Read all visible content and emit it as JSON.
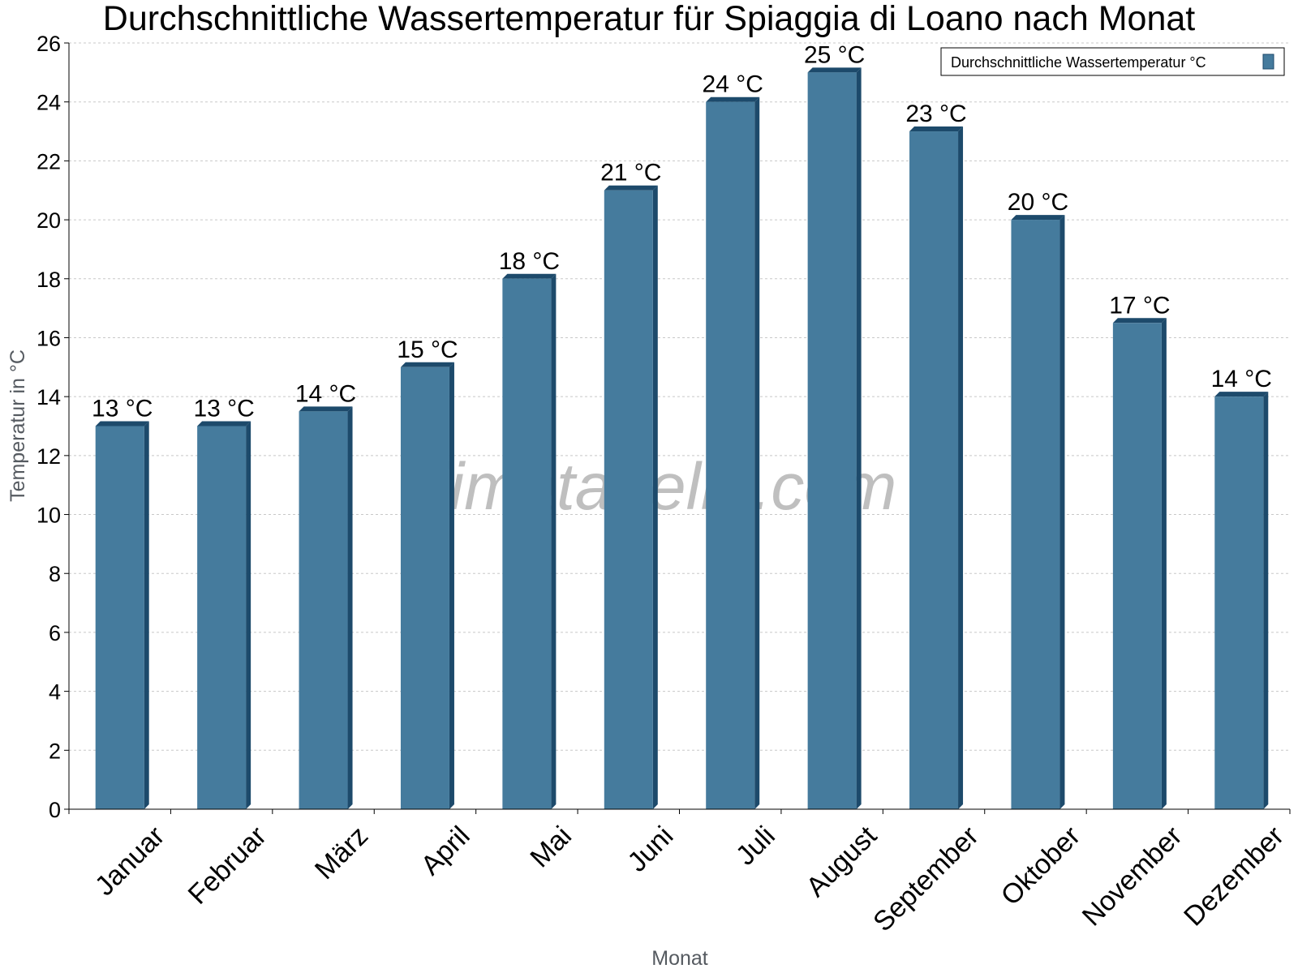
{
  "chart_data": {
    "type": "bar",
    "title": "Durchschnittliche Wassertemperatur für Spiaggia di Loano nach Monat",
    "xlabel": "Monat",
    "ylabel": "Temperatur in °C",
    "ylim": [
      0,
      26
    ],
    "yticks": [
      0,
      2,
      4,
      6,
      8,
      10,
      12,
      14,
      16,
      18,
      20,
      22,
      24,
      26
    ],
    "grid": true,
    "legend_position": "top-right",
    "categories": [
      "Januar",
      "Februar",
      "März",
      "April",
      "Mai",
      "Juni",
      "Juli",
      "August",
      "September",
      "Oktober",
      "November",
      "Dezember"
    ],
    "series": [
      {
        "name": "Durchschnittliche Wassertemperatur °C",
        "color": "#457b9d",
        "values": [
          13,
          13,
          13.5,
          15,
          18,
          21,
          24,
          25,
          23,
          20,
          16.5,
          14
        ],
        "labels": [
          "13 °C",
          "13 °C",
          "14 °C",
          "15 °C",
          "18 °C",
          "21 °C",
          "24 °C",
          "25 °C",
          "23 °C",
          "20 °C",
          "17 °C",
          "14 °C"
        ]
      }
    ],
    "watermark": "klimatabelle.com"
  }
}
